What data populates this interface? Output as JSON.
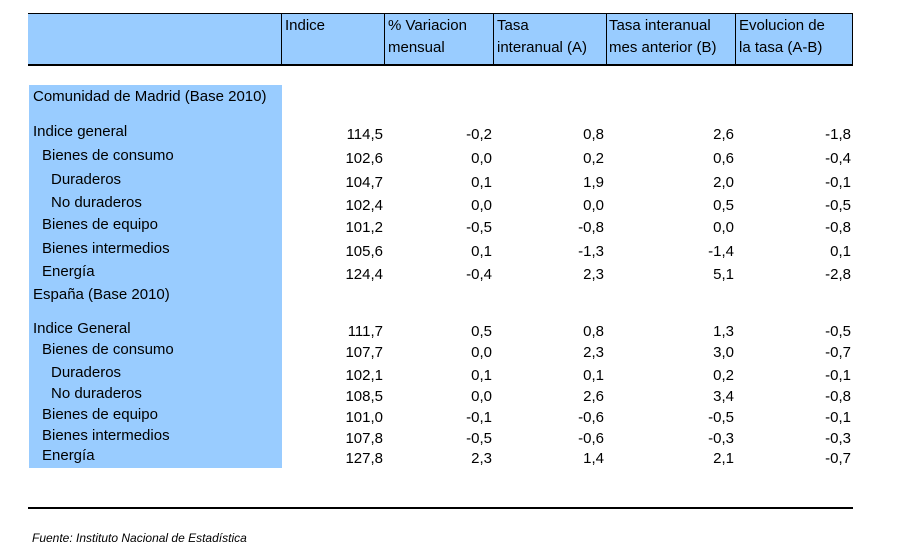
{
  "header": {
    "col_indice": "Indice",
    "col_variacion_1": "% Variacion",
    "col_variacion_2": "mensual",
    "col_tasa_1": "Tasa",
    "col_tasa_2": "interanual (A)",
    "col_tasa_ant_1": "Tasa interanual",
    "col_tasa_ant_2": "mes anterior (B)",
    "col_evol_1": "Evolucion de",
    "col_evol_2": "la tasa (A-B)"
  },
  "sections": [
    {
      "title": "Comunidad de Madrid (Base 2010)",
      "rows": [
        {
          "label": "Indice general",
          "indent": 0,
          "values": [
            "114,5",
            "-0,2",
            "0,8",
            "2,6",
            "-1,8"
          ]
        },
        {
          "label": "Bienes de consumo",
          "indent": 1,
          "values": [
            "102,6",
            "0,0",
            "0,2",
            "0,6",
            "-0,4"
          ]
        },
        {
          "label": "Duraderos",
          "indent": 2,
          "values": [
            "104,7",
            "0,1",
            "1,9",
            "2,0",
            "-0,1"
          ]
        },
        {
          "label": "No duraderos",
          "indent": 2,
          "values": [
            "102,4",
            "0,0",
            "0,0",
            "0,5",
            "-0,5"
          ]
        },
        {
          "label": "Bienes de equipo",
          "indent": 1,
          "values": [
            "101,2",
            "-0,5",
            "-0,8",
            "0,0",
            "-0,8"
          ]
        },
        {
          "label": "Bienes intermedios",
          "indent": 1,
          "values": [
            "105,6",
            "0,1",
            "-1,3",
            "-1,4",
            "0,1"
          ]
        },
        {
          "label": "Energía",
          "indent": 1,
          "values": [
            "124,4",
            "-0,4",
            "2,3",
            "5,1",
            "-2,8"
          ]
        }
      ]
    },
    {
      "title": "España (Base 2010)",
      "rows": [
        {
          "label": "Indice General",
          "indent": 0,
          "values": [
            "111,7",
            "0,5",
            "0,8",
            "1,3",
            "-0,5"
          ]
        },
        {
          "label": "Bienes de consumo",
          "indent": 1,
          "values": [
            "107,7",
            "0,0",
            "2,3",
            "3,0",
            "-0,7"
          ]
        },
        {
          "label": "Duraderos",
          "indent": 2,
          "values": [
            "102,1",
            "0,1",
            "0,1",
            "0,2",
            "-0,1"
          ]
        },
        {
          "label": "No duraderos",
          "indent": 2,
          "values": [
            "108,5",
            "0,0",
            "2,6",
            "3,4",
            "-0,8"
          ]
        },
        {
          "label": "Bienes de equipo",
          "indent": 1,
          "values": [
            "101,0",
            "-0,1",
            "-0,6",
            "-0,5",
            "-0,1"
          ]
        },
        {
          "label": "Bienes intermedios",
          "indent": 1,
          "values": [
            "107,8",
            "-0,5",
            "-0,6",
            "-0,3",
            "-0,3"
          ]
        },
        {
          "label": "Energía",
          "indent": 1,
          "values": [
            "127,8",
            "2,3",
            "1,4",
            "2,1",
            "-0,7"
          ]
        }
      ]
    }
  ],
  "footer": {
    "source": "Fuente: Instituto Nacional de Estadística"
  }
}
